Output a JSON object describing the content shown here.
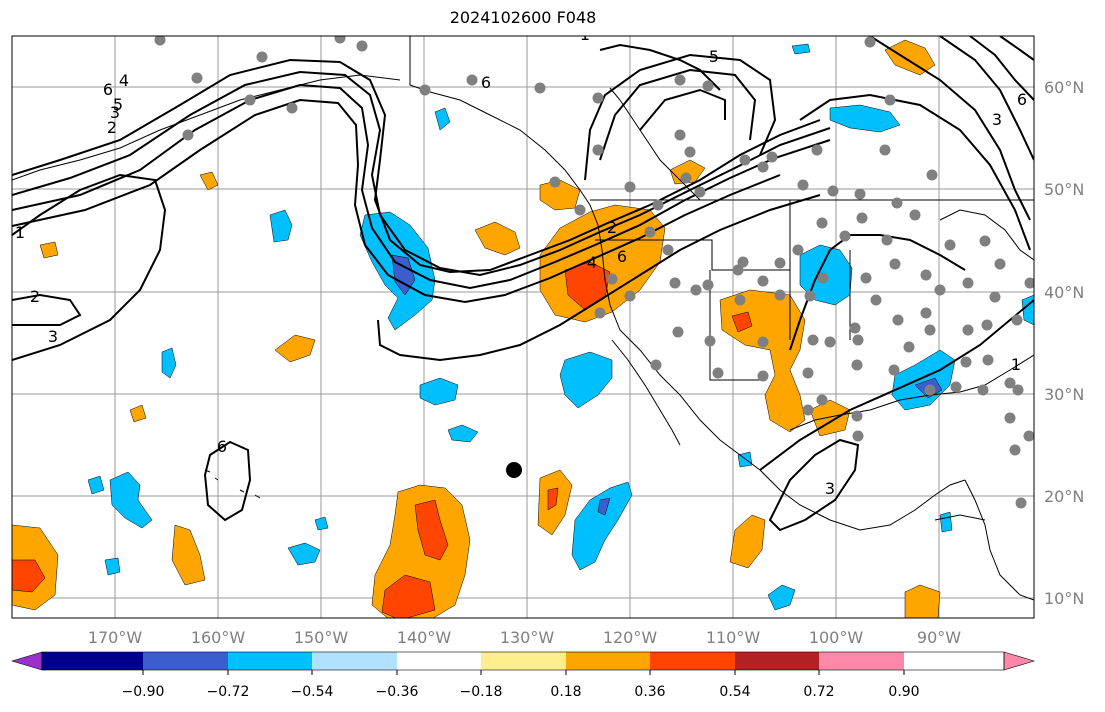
{
  "title": "2024102600 F048",
  "map": {
    "lon_labels": [
      "170°W",
      "160°W",
      "150°W",
      "140°W",
      "130°W",
      "120°W",
      "110°W",
      "100°W",
      "90°W"
    ],
    "lat_labels": [
      "60°N",
      "50°N",
      "40°N",
      "30°N",
      "20°N",
      "10°N"
    ],
    "contour_labels": [
      "6",
      "5",
      "4",
      "3",
      "2",
      "1",
      "2",
      "3",
      "6",
      "3",
      "1",
      "6",
      "5",
      "6",
      "3",
      "1",
      "2",
      "4",
      "6"
    ],
    "marker": "black-dot"
  },
  "colorbar": {
    "ticks": [
      "−0.90",
      "−0.72",
      "−0.54",
      "−0.36",
      "−0.18",
      "0.18",
      "0.36",
      "0.54",
      "0.72",
      "0.90"
    ],
    "colors": [
      "#9932cc",
      "#00008b",
      "#3a5fcd",
      "#00bfff",
      "#b0e2ff",
      "#ffffff",
      "#ffee8c",
      "#ffa500",
      "#ff4500",
      "#b22222",
      "#ff88aa"
    ]
  }
}
